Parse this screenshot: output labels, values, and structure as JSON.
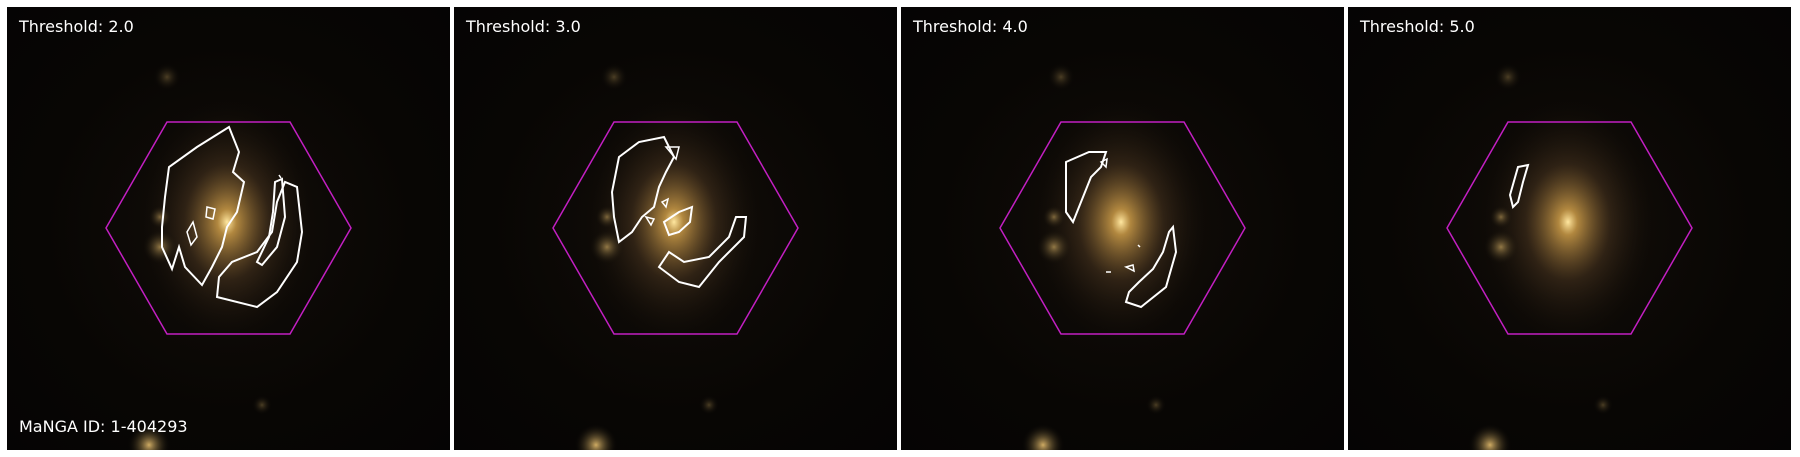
{
  "panels": [
    {
      "label": "Threshold: 2.0"
    },
    {
      "label": "Threshold: 3.0"
    },
    {
      "label": "Threshold: 4.0"
    },
    {
      "label": "Threshold: 5.0"
    }
  ],
  "manga_id_label": "MaNGA ID: 1-404293",
  "colors": {
    "hexagon": "#c21fc2",
    "contour": "#ffffff",
    "galaxy_core": "#ffd980",
    "background": "#060505"
  }
}
